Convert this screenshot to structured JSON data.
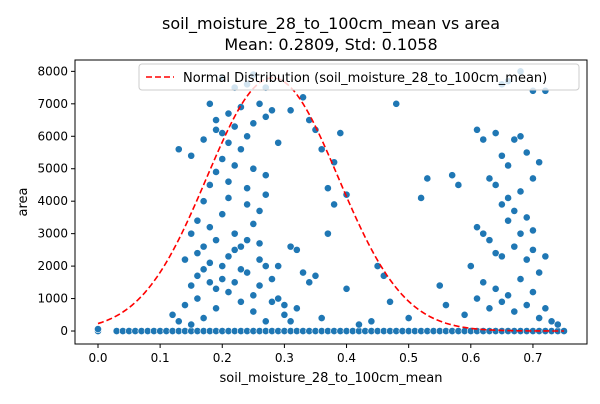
{
  "chart_data": {
    "type": "scatter",
    "title_line1": "soil_moisture_28_to_100cm_mean vs area",
    "title_line2": "Mean: 0.2809, Std: 0.1058",
    "xlabel": "soil_moisture_28_to_100cm_mean",
    "ylabel": "area",
    "xlim": [
      -0.037,
      0.787
    ],
    "ylim": [
      -400,
      8350
    ],
    "x_ticks": [
      0.0,
      0.1,
      0.2,
      0.3,
      0.4,
      0.5,
      0.6,
      0.7
    ],
    "x_tick_labels": [
      "0.0",
      "0.1",
      "0.2",
      "0.3",
      "0.4",
      "0.5",
      "0.6",
      "0.7"
    ],
    "y_ticks": [
      0,
      1000,
      2000,
      3000,
      4000,
      5000,
      6000,
      7000,
      8000
    ],
    "y_tick_labels": [
      "0",
      "1000",
      "2000",
      "3000",
      "4000",
      "5000",
      "6000",
      "7000",
      "8000"
    ],
    "legend_position": "top-right",
    "legend": [
      {
        "label": "Normal Distribution (soil_moisture_28_to_100cm_mean)",
        "style": "dashed",
        "color": "#e31a1c"
      }
    ],
    "point_color": "#1f77b4",
    "curve_color": "#ff0000",
    "normal_curve": {
      "mean": 0.2809,
      "std": 0.1058,
      "peak": 7800
    },
    "points": [
      [
        0.0,
        0
      ],
      [
        0.0,
        60
      ],
      [
        0.03,
        0
      ],
      [
        0.04,
        0
      ],
      [
        0.05,
        0
      ],
      [
        0.06,
        0
      ],
      [
        0.07,
        0
      ],
      [
        0.08,
        0
      ],
      [
        0.09,
        0
      ],
      [
        0.1,
        0
      ],
      [
        0.11,
        0
      ],
      [
        0.12,
        0
      ],
      [
        0.13,
        0
      ],
      [
        0.14,
        0
      ],
      [
        0.15,
        0
      ],
      [
        0.16,
        0
      ],
      [
        0.17,
        0
      ],
      [
        0.18,
        0
      ],
      [
        0.19,
        0
      ],
      [
        0.2,
        0
      ],
      [
        0.21,
        0
      ],
      [
        0.22,
        0
      ],
      [
        0.23,
        0
      ],
      [
        0.24,
        0
      ],
      [
        0.25,
        0
      ],
      [
        0.26,
        0
      ],
      [
        0.27,
        0
      ],
      [
        0.28,
        0
      ],
      [
        0.29,
        0
      ],
      [
        0.3,
        0
      ],
      [
        0.31,
        0
      ],
      [
        0.32,
        0
      ],
      [
        0.33,
        0
      ],
      [
        0.34,
        0
      ],
      [
        0.35,
        0
      ],
      [
        0.36,
        0
      ],
      [
        0.37,
        0
      ],
      [
        0.38,
        0
      ],
      [
        0.39,
        0
      ],
      [
        0.4,
        0
      ],
      [
        0.41,
        0
      ],
      [
        0.42,
        0
      ],
      [
        0.43,
        0
      ],
      [
        0.44,
        0
      ],
      [
        0.45,
        0
      ],
      [
        0.46,
        0
      ],
      [
        0.47,
        0
      ],
      [
        0.48,
        0
      ],
      [
        0.49,
        0
      ],
      [
        0.5,
        0
      ],
      [
        0.51,
        0
      ],
      [
        0.52,
        0
      ],
      [
        0.53,
        0
      ],
      [
        0.54,
        0
      ],
      [
        0.55,
        0
      ],
      [
        0.56,
        0
      ],
      [
        0.57,
        0
      ],
      [
        0.58,
        0
      ],
      [
        0.59,
        0
      ],
      [
        0.6,
        0
      ],
      [
        0.61,
        0
      ],
      [
        0.62,
        0
      ],
      [
        0.63,
        0
      ],
      [
        0.64,
        0
      ],
      [
        0.65,
        0
      ],
      [
        0.66,
        0
      ],
      [
        0.67,
        0
      ],
      [
        0.68,
        0
      ],
      [
        0.69,
        0
      ],
      [
        0.7,
        0
      ],
      [
        0.71,
        0
      ],
      [
        0.72,
        0
      ],
      [
        0.73,
        0
      ],
      [
        0.74,
        0
      ],
      [
        0.75,
        0
      ],
      [
        0.12,
        500
      ],
      [
        0.13,
        300
      ],
      [
        0.14,
        800
      ],
      [
        0.15,
        200
      ],
      [
        0.16,
        1000
      ],
      [
        0.17,
        400
      ],
      [
        0.18,
        1500
      ],
      [
        0.19,
        700
      ],
      [
        0.2,
        2000
      ],
      [
        0.21,
        1200
      ],
      [
        0.22,
        2500
      ],
      [
        0.23,
        900
      ],
      [
        0.24,
        1800
      ],
      [
        0.25,
        600
      ],
      [
        0.26,
        2200
      ],
      [
        0.27,
        300
      ],
      [
        0.15,
        1400
      ],
      [
        0.16,
        2400
      ],
      [
        0.17,
        1900
      ],
      [
        0.18,
        3200
      ],
      [
        0.19,
        2800
      ],
      [
        0.2,
        3600
      ],
      [
        0.21,
        4100
      ],
      [
        0.22,
        3000
      ],
      [
        0.23,
        2600
      ],
      [
        0.24,
        3900
      ],
      [
        0.25,
        3300
      ],
      [
        0.26,
        2700
      ],
      [
        0.27,
        4200
      ],
      [
        0.28,
        1600
      ],
      [
        0.16,
        3400
      ],
      [
        0.17,
        4000
      ],
      [
        0.18,
        4500
      ],
      [
        0.19,
        4900
      ],
      [
        0.2,
        5300
      ],
      [
        0.21,
        4600
      ],
      [
        0.22,
        5100
      ],
      [
        0.23,
        5600
      ],
      [
        0.24,
        4400
      ],
      [
        0.25,
        5000
      ],
      [
        0.26,
        3700
      ],
      [
        0.27,
        4800
      ],
      [
        0.13,
        5600
      ],
      [
        0.15,
        5400
      ],
      [
        0.17,
        5900
      ],
      [
        0.19,
        6500
      ],
      [
        0.2,
        6100
      ],
      [
        0.21,
        6700
      ],
      [
        0.22,
        6300
      ],
      [
        0.23,
        6900
      ],
      [
        0.24,
        6000
      ],
      [
        0.25,
        6400
      ],
      [
        0.26,
        7000
      ],
      [
        0.27,
        6600
      ],
      [
        0.28,
        6800
      ],
      [
        0.18,
        7000
      ],
      [
        0.2,
        7800
      ],
      [
        0.22,
        7500
      ],
      [
        0.24,
        7600
      ],
      [
        0.25,
        7900
      ],
      [
        0.27,
        7500
      ],
      [
        0.19,
        6200
      ],
      [
        0.21,
        5800
      ],
      [
        0.14,
        2200
      ],
      [
        0.15,
        3000
      ],
      [
        0.16,
        1700
      ],
      [
        0.17,
        2600
      ],
      [
        0.18,
        2100
      ],
      [
        0.19,
        1300
      ],
      [
        0.2,
        1600
      ],
      [
        0.21,
        2300
      ],
      [
        0.22,
        1500
      ],
      [
        0.23,
        1900
      ],
      [
        0.24,
        2800
      ],
      [
        0.25,
        1100
      ],
      [
        0.26,
        1400
      ],
      [
        0.27,
        2000
      ],
      [
        0.28,
        900
      ],
      [
        0.29,
        1000
      ],
      [
        0.3,
        800
      ],
      [
        0.31,
        2600
      ],
      [
        0.32,
        2500
      ],
      [
        0.33,
        1800
      ],
      [
        0.34,
        1500
      ],
      [
        0.35,
        1700
      ],
      [
        0.36,
        400
      ],
      [
        0.37,
        3000
      ],
      [
        0.29,
        2000
      ],
      [
        0.3,
        500
      ],
      [
        0.31,
        300
      ],
      [
        0.32,
        700
      ],
      [
        0.29,
        5800
      ],
      [
        0.31,
        6800
      ],
      [
        0.33,
        7200
      ],
      [
        0.34,
        6500
      ],
      [
        0.35,
        6200
      ],
      [
        0.36,
        5600
      ],
      [
        0.37,
        4400
      ],
      [
        0.38,
        5200
      ],
      [
        0.39,
        6100
      ],
      [
        0.38,
        3900
      ],
      [
        0.4,
        4200
      ],
      [
        0.4,
        1300
      ],
      [
        0.42,
        200
      ],
      [
        0.44,
        300
      ],
      [
        0.45,
        2000
      ],
      [
        0.46,
        1700
      ],
      [
        0.47,
        900
      ],
      [
        0.48,
        7000
      ],
      [
        0.5,
        400
      ],
      [
        0.52,
        4100
      ],
      [
        0.53,
        4700
      ],
      [
        0.55,
        1400
      ],
      [
        0.56,
        800
      ],
      [
        0.57,
        4800
      ],
      [
        0.58,
        4500
      ],
      [
        0.59,
        500
      ],
      [
        0.6,
        2000
      ],
      [
        0.61,
        3200
      ],
      [
        0.62,
        3000
      ],
      [
        0.63,
        2800
      ],
      [
        0.64,
        2400
      ],
      [
        0.65,
        2300
      ],
      [
        0.66,
        3400
      ],
      [
        0.67,
        2600
      ],
      [
        0.68,
        3000
      ],
      [
        0.69,
        2200
      ],
      [
        0.7,
        2500
      ],
      [
        0.71,
        1800
      ],
      [
        0.61,
        6200
      ],
      [
        0.62,
        5900
      ],
      [
        0.64,
        6100
      ],
      [
        0.65,
        5400
      ],
      [
        0.66,
        5100
      ],
      [
        0.67,
        5900
      ],
      [
        0.68,
        6000
      ],
      [
        0.69,
        5500
      ],
      [
        0.7,
        4700
      ],
      [
        0.71,
        5200
      ],
      [
        0.63,
        4700
      ],
      [
        0.64,
        4500
      ],
      [
        0.65,
        3900
      ],
      [
        0.66,
        4100
      ],
      [
        0.67,
        3700
      ],
      [
        0.68,
        4300
      ],
      [
        0.69,
        3500
      ],
      [
        0.7,
        3100
      ],
      [
        0.72,
        2300
      ],
      [
        0.61,
        1000
      ],
      [
        0.62,
        1500
      ],
      [
        0.63,
        700
      ],
      [
        0.64,
        1300
      ],
      [
        0.65,
        900
      ],
      [
        0.66,
        1100
      ],
      [
        0.67,
        600
      ],
      [
        0.68,
        1600
      ],
      [
        0.69,
        800
      ],
      [
        0.7,
        1200
      ],
      [
        0.71,
        400
      ],
      [
        0.72,
        700
      ],
      [
        0.73,
        300
      ],
      [
        0.74,
        200
      ],
      [
        0.65,
        7600
      ],
      [
        0.66,
        7700
      ],
      [
        0.68,
        8000
      ],
      [
        0.7,
        7400
      ],
      [
        0.72,
        7400
      ]
    ]
  }
}
